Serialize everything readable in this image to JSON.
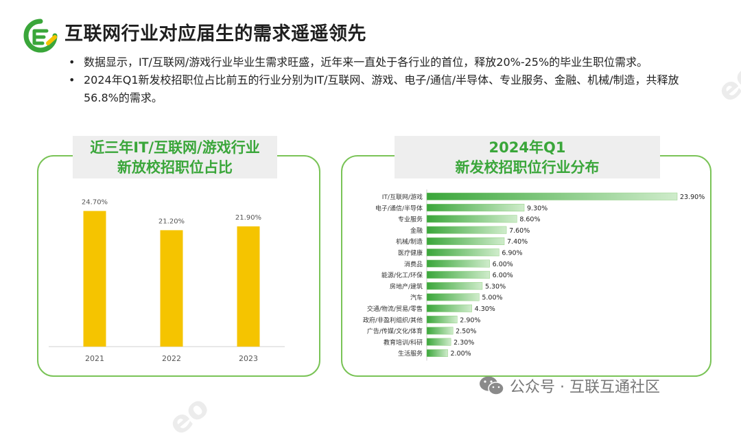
{
  "header": {
    "title": "互联网行业对应届生的需求遥遥领先",
    "logo_icon": "brand-logo-icon",
    "accent_color": "#3aa63a"
  },
  "bullets": [
    "数据显示，IT/互联网/游戏行业毕业生需求旺盛，近年来一直处于各行业的首位，释放20%-25%的毕业生职位需求。",
    "2024年Q1新发校招职位占比前五的行业分别为IT/互联网、游戏、电子/通信/半导体、专业服务、金融、机械/制造，共释放56.8%的需求。"
  ],
  "bullet_symbol": "•",
  "panels": {
    "left_title_line1": "近三年IT/互联网/游戏行业",
    "left_title_line2": "新放校招职位占比",
    "right_title_line1": "2024年Q1",
    "right_title_line2": "新发校招职位行业分布"
  },
  "watermark": {
    "text": "公众号 · 互联互通社区",
    "icon": "wechat-icon"
  },
  "background_mark": "eo",
  "chart_data": [
    {
      "type": "bar",
      "orientation": "vertical",
      "categories": [
        "2021",
        "2022",
        "2023"
      ],
      "values": [
        24.7,
        21.2,
        21.9
      ],
      "value_labels": [
        "24.70%",
        "21.20%",
        "21.90%"
      ],
      "color": "#f5c400",
      "title": "",
      "xlabel": "",
      "ylabel": "",
      "ylim": [
        0,
        25
      ],
      "grid": false
    },
    {
      "type": "bar",
      "orientation": "horizontal",
      "categories": [
        "IT/互联网/游戏",
        "电子/通信/半导体",
        "专业服务",
        "金融",
        "机械/制造",
        "医疗健康",
        "消费品",
        "能源/化工/环保",
        "房地产/建筑",
        "汽车",
        "交通/物流/贸易/零售",
        "政府/非盈利组织/其他",
        "广告/传媒/文化/体育",
        "教育培训/科研",
        "生活服务"
      ],
      "values": [
        23.9,
        9.3,
        8.6,
        7.6,
        7.4,
        6.9,
        6.0,
        6.0,
        5.3,
        5.0,
        4.3,
        2.9,
        2.5,
        2.3,
        2.0
      ],
      "value_labels": [
        "23.90%",
        "9.30%",
        "8.60%",
        "7.60%",
        "7.40%",
        "6.90%",
        "6.00%",
        "6.00%",
        "5.30%",
        "5.00%",
        "4.30%",
        "2.90%",
        "2.50%",
        "2.30%",
        "2.00%"
      ],
      "color": "#3aa63a",
      "title": "",
      "xlabel": "",
      "ylabel": "",
      "xlim": [
        0,
        23.9
      ],
      "grid": false
    }
  ]
}
